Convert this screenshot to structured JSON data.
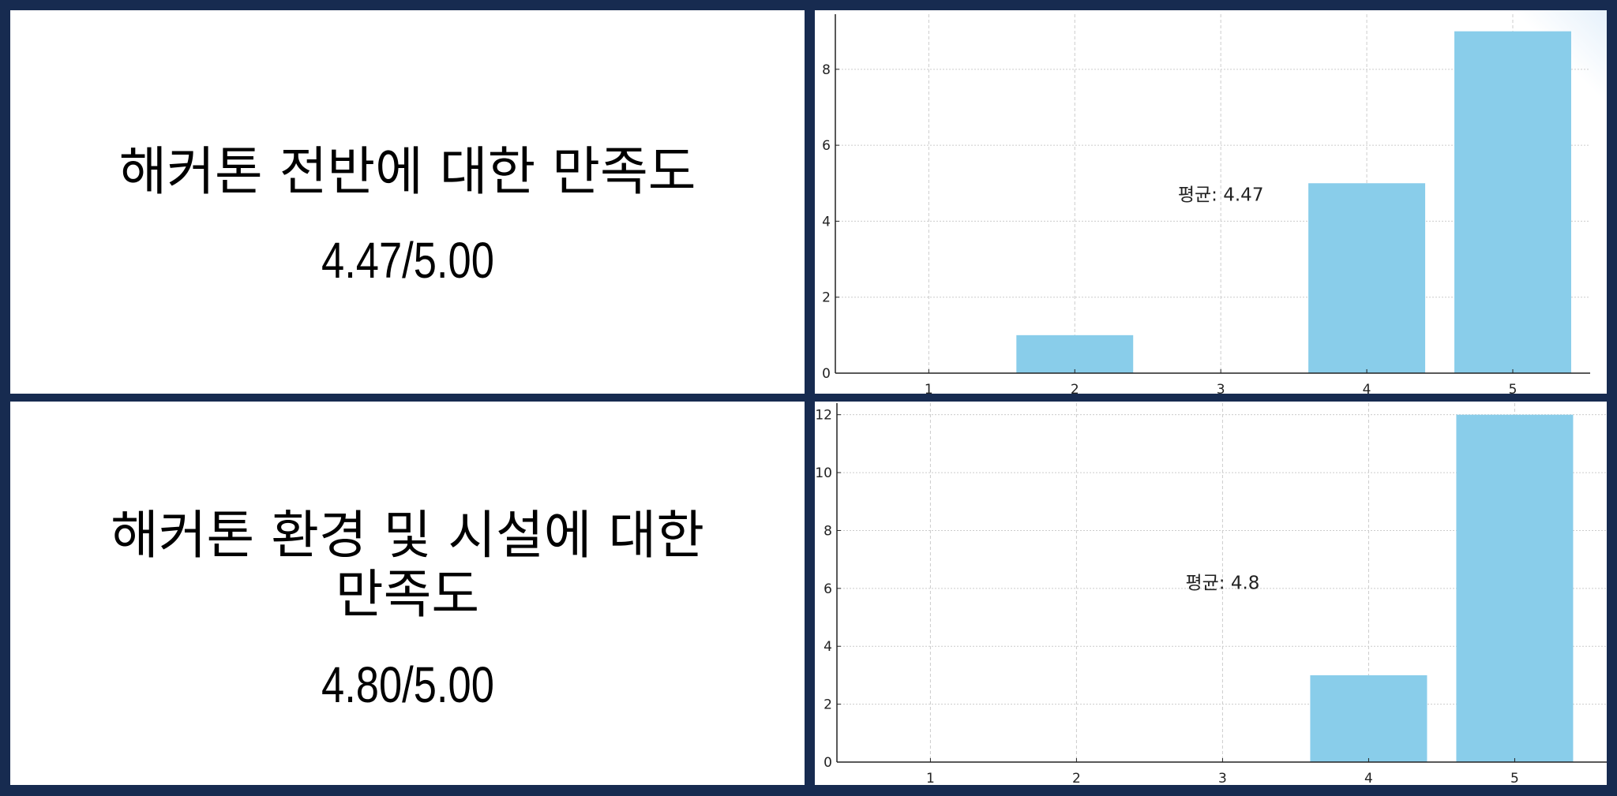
{
  "panels": [
    {
      "title_lines": [
        "해커톤 전반에 대한 만족도"
      ],
      "score": "4.47/5.00"
    },
    {
      "title_lines": [
        "해커톤 환경 및 시설에 대한",
        "만족도"
      ],
      "score": "4.80/5.00"
    }
  ],
  "colors": {
    "frame": "#172b50",
    "bar": "#89cdea",
    "grid": "#cccccc"
  },
  "chart_data": [
    {
      "type": "bar",
      "categories": [
        1,
        2,
        3,
        4,
        5
      ],
      "values": [
        0,
        1,
        0,
        5,
        9
      ],
      "xlim": [
        0.36,
        5.53
      ],
      "ylim": [
        0,
        9.45
      ],
      "yticks": [
        0,
        2,
        4,
        6,
        8
      ],
      "grid": true,
      "annotation": {
        "text": "평균: 4.47",
        "x": 3,
        "y": 4.7
      }
    },
    {
      "type": "bar",
      "categories": [
        1,
        2,
        3,
        4,
        5
      ],
      "values": [
        0,
        0,
        0,
        3,
        12
      ],
      "xlim": [
        0.36,
        5.63
      ],
      "ylim": [
        0,
        12.4
      ],
      "yticks": [
        0,
        2,
        4,
        6,
        8,
        10,
        12
      ],
      "grid": true,
      "annotation": {
        "text": "평균: 4.8",
        "x": 3,
        "y": 6.2
      }
    }
  ]
}
